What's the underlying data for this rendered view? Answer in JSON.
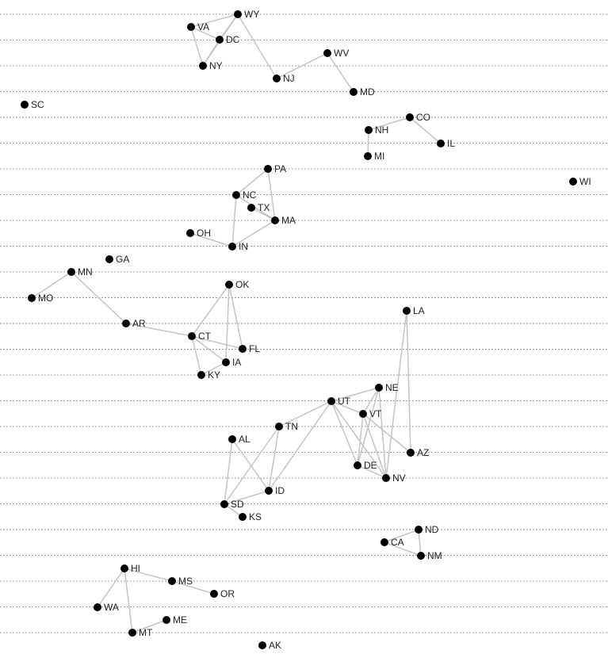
{
  "graph": {
    "colors": {
      "edge": "#c4c4c4",
      "node": "#000000",
      "row_line": "#999999",
      "label": "#222222"
    },
    "nodes": [
      {
        "id": "WY",
        "label": "WY"
      },
      {
        "id": "VA",
        "label": "VA"
      },
      {
        "id": "DC",
        "label": "DC"
      },
      {
        "id": "NY",
        "label": "NY"
      },
      {
        "id": "WV",
        "label": "WV"
      },
      {
        "id": "NJ",
        "label": "NJ"
      },
      {
        "id": "MD",
        "label": "MD"
      },
      {
        "id": "SC",
        "label": "SC"
      },
      {
        "id": "CO",
        "label": "CO"
      },
      {
        "id": "NH",
        "label": "NH"
      },
      {
        "id": "IL",
        "label": "IL"
      },
      {
        "id": "MI",
        "label": "MI"
      },
      {
        "id": "PA",
        "label": "PA"
      },
      {
        "id": "WI",
        "label": "WI"
      },
      {
        "id": "NC",
        "label": "NC"
      },
      {
        "id": "TX",
        "label": "TX"
      },
      {
        "id": "MA",
        "label": "MA"
      },
      {
        "id": "OH",
        "label": "OH"
      },
      {
        "id": "IN",
        "label": "IN"
      },
      {
        "id": "GA",
        "label": "GA"
      },
      {
        "id": "MN",
        "label": "MN"
      },
      {
        "id": "OK",
        "label": "OK"
      },
      {
        "id": "MO",
        "label": "MO"
      },
      {
        "id": "LA",
        "label": "LA"
      },
      {
        "id": "AR",
        "label": "AR"
      },
      {
        "id": "CT",
        "label": "CT"
      },
      {
        "id": "FL",
        "label": "FL"
      },
      {
        "id": "IA",
        "label": "IA"
      },
      {
        "id": "KY",
        "label": "KY"
      },
      {
        "id": "NE",
        "label": "NE"
      },
      {
        "id": "UT",
        "label": "UT"
      },
      {
        "id": "VT",
        "label": "VT"
      },
      {
        "id": "TN",
        "label": "TN"
      },
      {
        "id": "AL",
        "label": "AL"
      },
      {
        "id": "AZ",
        "label": "AZ"
      },
      {
        "id": "DE",
        "label": "DE"
      },
      {
        "id": "NV",
        "label": "NV"
      },
      {
        "id": "ID",
        "label": "ID"
      },
      {
        "id": "SD",
        "label": "SD"
      },
      {
        "id": "KS",
        "label": "KS"
      },
      {
        "id": "ND",
        "label": "ND"
      },
      {
        "id": "CA",
        "label": "CA"
      },
      {
        "id": "NM",
        "label": "NM"
      },
      {
        "id": "HI",
        "label": "HI"
      },
      {
        "id": "MS",
        "label": "MS"
      },
      {
        "id": "OR",
        "label": "OR"
      },
      {
        "id": "WA",
        "label": "WA"
      },
      {
        "id": "ME",
        "label": "ME"
      },
      {
        "id": "MT",
        "label": "MT"
      },
      {
        "id": "AK",
        "label": "AK"
      }
    ],
    "edges": [
      [
        "WY",
        "VA"
      ],
      [
        "WY",
        "DC"
      ],
      [
        "WY",
        "NY"
      ],
      [
        "WY",
        "NJ"
      ],
      [
        "VA",
        "DC"
      ],
      [
        "VA",
        "NY"
      ],
      [
        "DC",
        "NY"
      ],
      [
        "NJ",
        "WV"
      ],
      [
        "WV",
        "MD"
      ],
      [
        "NH",
        "CO"
      ],
      [
        "CO",
        "IL"
      ],
      [
        "NH",
        "MI"
      ],
      [
        "PA",
        "NC"
      ],
      [
        "PA",
        "MA"
      ],
      [
        "NC",
        "MA"
      ],
      [
        "TX",
        "MA"
      ],
      [
        "NC",
        "IN"
      ],
      [
        "OH",
        "IN"
      ],
      [
        "IN",
        "MA"
      ],
      [
        "MN",
        "MO"
      ],
      [
        "MN",
        "AR"
      ],
      [
        "AR",
        "CT"
      ],
      [
        "OK",
        "CT"
      ],
      [
        "OK",
        "FL"
      ],
      [
        "OK",
        "IA"
      ],
      [
        "CT",
        "FL"
      ],
      [
        "CT",
        "IA"
      ],
      [
        "CT",
        "KY"
      ],
      [
        "KY",
        "IA"
      ],
      [
        "LA",
        "NV"
      ],
      [
        "LA",
        "AZ"
      ],
      [
        "UT",
        "NE"
      ],
      [
        "UT",
        "VT"
      ],
      [
        "UT",
        "TN"
      ],
      [
        "UT",
        "ID"
      ],
      [
        "UT",
        "DE"
      ],
      [
        "UT",
        "NV"
      ],
      [
        "NE",
        "VT"
      ],
      [
        "NE",
        "DE"
      ],
      [
        "NE",
        "NV"
      ],
      [
        "VT",
        "AZ"
      ],
      [
        "VT",
        "NV"
      ],
      [
        "VT",
        "DE"
      ],
      [
        "DE",
        "NV"
      ],
      [
        "TN",
        "SD"
      ],
      [
        "TN",
        "ID"
      ],
      [
        "AL",
        "ID"
      ],
      [
        "AL",
        "SD"
      ],
      [
        "ID",
        "SD"
      ],
      [
        "SD",
        "KS"
      ],
      [
        "ND",
        "CA"
      ],
      [
        "ND",
        "NM"
      ],
      [
        "CA",
        "NM"
      ],
      [
        "HI",
        "MS"
      ],
      [
        "MS",
        "OR"
      ],
      [
        "HI",
        "WA"
      ],
      [
        "HI",
        "MT"
      ],
      [
        "MT",
        "ME"
      ]
    ]
  }
}
